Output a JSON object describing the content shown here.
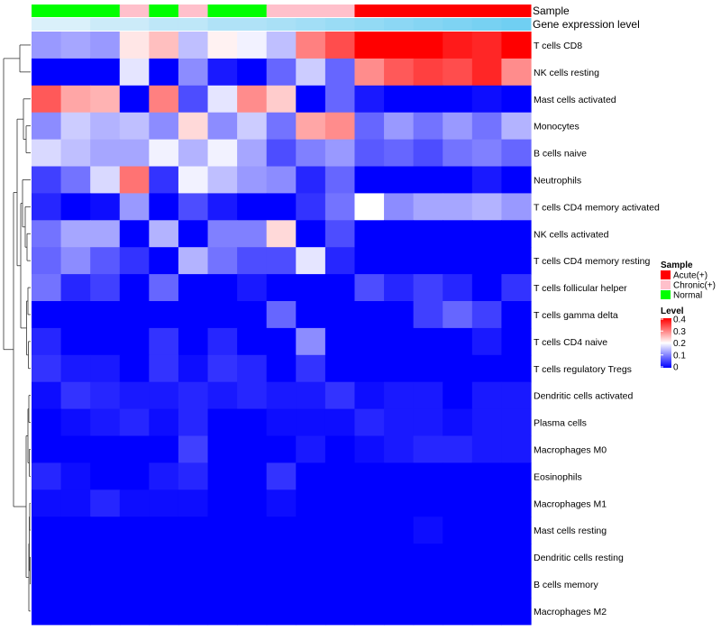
{
  "chart_data": {
    "type": "heatmap",
    "title": "",
    "annotation_rows": {
      "sample_label": "Sample",
      "gene_label": "Gene expression level"
    },
    "sample_annotation": [
      "Normal",
      "Normal",
      "Normal",
      "Chronic(+)",
      "Normal",
      "Chronic(+)",
      "Normal",
      "Normal",
      "Chronic(+)",
      "Chronic(+)",
      "Chronic(+)",
      "Acute(+)",
      "Acute(+)",
      "Acute(+)",
      "Acute(+)",
      "Acute(+)",
      "Acute(+)"
    ],
    "gene_annotation": [
      0.1,
      0.1,
      0.2,
      0.2,
      0.3,
      0.3,
      0.4,
      0.4,
      0.45,
      0.5,
      0.55,
      0.6,
      0.65,
      0.7,
      0.75,
      0.8,
      0.85
    ],
    "rows": [
      "T cells CD8",
      "NK cells resting",
      "Mast cells activated",
      "Monocytes",
      "B cells naive",
      "Neutrophils",
      "T cells CD4 memory activated",
      "NK cells activated",
      "T cells CD4 memory resting",
      "T cells follicular helper",
      "T cells gamma delta",
      "T cells CD4 naive",
      "T cells regulatory  Tregs",
      "Dendritic cells activated",
      "Plasma cells",
      "Macrophages M0",
      "Eosinophils",
      "Macrophages M1",
      "Mast cells resting",
      "Dendritic cells resting",
      "B cells memory",
      "Macrophages M2"
    ],
    "values": [
      [
        0.12,
        0.13,
        0.12,
        0.22,
        0.25,
        0.15,
        0.21,
        0.19,
        0.15,
        0.3,
        0.34,
        0.4,
        0.4,
        0.4,
        0.38,
        0.37,
        0.4
      ],
      [
        0.0,
        0.0,
        0.0,
        0.18,
        0.0,
        0.11,
        0.02,
        0.0,
        0.08,
        0.16,
        0.08,
        0.29,
        0.33,
        0.35,
        0.34,
        0.37,
        0.29
      ],
      [
        0.33,
        0.27,
        0.26,
        0.0,
        0.3,
        0.06,
        0.18,
        0.29,
        0.24,
        0.0,
        0.08,
        0.02,
        0.0,
        0.0,
        0.0,
        0.01,
        0.0
      ],
      [
        0.11,
        0.16,
        0.14,
        0.15,
        0.11,
        0.23,
        0.11,
        0.16,
        0.09,
        0.27,
        0.29,
        0.08,
        0.12,
        0.09,
        0.12,
        0.09,
        0.14
      ],
      [
        0.17,
        0.15,
        0.13,
        0.13,
        0.19,
        0.14,
        0.19,
        0.13,
        0.06,
        0.1,
        0.12,
        0.07,
        0.08,
        0.06,
        0.09,
        0.1,
        0.08
      ],
      [
        0.05,
        0.09,
        0.17,
        0.31,
        0.04,
        0.19,
        0.15,
        0.12,
        0.11,
        0.03,
        0.08,
        0.0,
        0.0,
        0.0,
        0.0,
        0.02,
        0.0
      ],
      [
        0.03,
        0.0,
        0.01,
        0.12,
        0.0,
        0.06,
        0.02,
        0.0,
        0.0,
        0.04,
        0.09,
        0.2,
        0.11,
        0.13,
        0.13,
        0.14,
        0.12
      ],
      [
        0.09,
        0.13,
        0.13,
        0.0,
        0.14,
        0.0,
        0.1,
        0.1,
        0.23,
        0.0,
        0.06,
        0.0,
        0.0,
        0.0,
        0.0,
        0.0,
        0.0
      ],
      [
        0.08,
        0.11,
        0.07,
        0.04,
        0.0,
        0.14,
        0.09,
        0.06,
        0.06,
        0.18,
        0.03,
        0.0,
        0.0,
        0.0,
        0.0,
        0.0,
        0.0
      ],
      [
        0.09,
        0.03,
        0.05,
        0.0,
        0.08,
        0.0,
        0.0,
        0.02,
        0.0,
        0.0,
        0.0,
        0.06,
        0.03,
        0.05,
        0.03,
        0.0,
        0.04
      ],
      [
        0.0,
        0.0,
        0.0,
        0.0,
        0.0,
        0.0,
        0.0,
        0.0,
        0.08,
        0.0,
        0.0,
        0.0,
        0.0,
        0.05,
        0.08,
        0.05,
        0.0
      ],
      [
        0.03,
        0.0,
        0.0,
        0.0,
        0.04,
        0.0,
        0.03,
        0.0,
        0.0,
        0.11,
        0.0,
        0.0,
        0.0,
        0.0,
        0.0,
        0.02,
        0.0
      ],
      [
        0.04,
        0.02,
        0.02,
        0.0,
        0.04,
        0.01,
        0.04,
        0.03,
        0.0,
        0.04,
        0.0,
        0.0,
        0.0,
        0.0,
        0.0,
        0.0,
        0.0
      ],
      [
        0.01,
        0.04,
        0.03,
        0.02,
        0.02,
        0.03,
        0.02,
        0.03,
        0.02,
        0.02,
        0.04,
        0.01,
        0.02,
        0.02,
        0.0,
        0.02,
        0.02
      ],
      [
        0.0,
        0.01,
        0.02,
        0.03,
        0.01,
        0.03,
        0.0,
        0.0,
        0.01,
        0.01,
        0.01,
        0.03,
        0.02,
        0.02,
        0.01,
        0.02,
        0.02
      ],
      [
        0.0,
        0.0,
        0.0,
        0.0,
        0.0,
        0.05,
        0.0,
        0.0,
        0.0,
        0.02,
        0.0,
        0.01,
        0.02,
        0.03,
        0.03,
        0.02,
        0.02
      ],
      [
        0.03,
        0.01,
        0.0,
        0.0,
        0.02,
        0.03,
        0.0,
        0.0,
        0.04,
        0.0,
        0.0,
        0.0,
        0.0,
        0.0,
        0.0,
        0.0,
        0.0
      ],
      [
        0.01,
        0.01,
        0.03,
        0.01,
        0.01,
        0.01,
        0.0,
        0.0,
        0.01,
        0.0,
        0.0,
        0.0,
        0.0,
        0.0,
        0.0,
        0.0,
        0.0
      ],
      [
        0.0,
        0.0,
        0.0,
        0.0,
        0.0,
        0.0,
        0.0,
        0.0,
        0.0,
        0.0,
        0.0,
        0.0,
        0.0,
        0.01,
        0.0,
        0.0,
        0.0
      ],
      [
        0.0,
        0.0,
        0.0,
        0.0,
        0.0,
        0.0,
        0.0,
        0.0,
        0.0,
        0.0,
        0.0,
        0.0,
        0.0,
        0.0,
        0.0,
        0.0,
        0.0
      ],
      [
        0.0,
        0.0,
        0.0,
        0.0,
        0.0,
        0.0,
        0.0,
        0.0,
        0.0,
        0.0,
        0.0,
        0.0,
        0.0,
        0.0,
        0.0,
        0.0,
        0.0
      ],
      [
        0.0,
        0.0,
        0.0,
        0.0,
        0.0,
        0.0,
        0.0,
        0.0,
        0.0,
        0.0,
        0.0,
        0.0,
        0.0,
        0.0,
        0.0,
        0.0,
        0.0
      ]
    ],
    "value_range": [
      0,
      0.4
    ],
    "legend": {
      "sample_title": "Sample",
      "sample_items": [
        {
          "label": "Acute(+)",
          "color": "#ff0000"
        },
        {
          "label": "Chronic(+)",
          "color": "#ffc0cb"
        },
        {
          "label": "Normal",
          "color": "#00ff00"
        }
      ],
      "level_title": "Level",
      "level_ticks": [
        "0.4",
        "0.3",
        "0.2",
        "0.1",
        "0"
      ],
      "placement": "right"
    },
    "colors": {
      "low": "#0000ff",
      "mid": "#ffffff",
      "high": "#ff0000",
      "gene_low": "#e8f4fb",
      "gene_high": "#5bc8f0"
    }
  }
}
